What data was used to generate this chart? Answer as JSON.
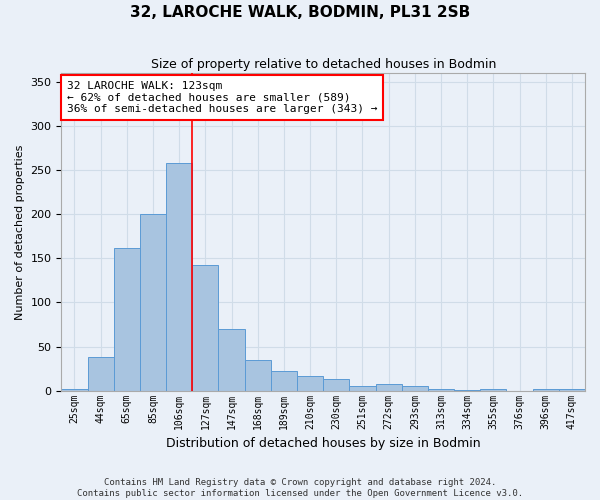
{
  "title": "32, LAROCHE WALK, BODMIN, PL31 2SB",
  "subtitle": "Size of property relative to detached houses in Bodmin",
  "xlabel": "Distribution of detached houses by size in Bodmin",
  "ylabel": "Number of detached properties",
  "categories": [
    "25sqm",
    "44sqm",
    "65sqm",
    "85sqm",
    "106sqm",
    "127sqm",
    "147sqm",
    "168sqm",
    "189sqm",
    "210sqm",
    "230sqm",
    "251sqm",
    "272sqm",
    "293sqm",
    "313sqm",
    "334sqm",
    "355sqm",
    "376sqm",
    "396sqm",
    "417sqm"
  ],
  "values": [
    2,
    38,
    162,
    200,
    258,
    142,
    70,
    35,
    22,
    17,
    13,
    5,
    7,
    5,
    2,
    1,
    2,
    0,
    2,
    2
  ],
  "bar_color": "#a8c4e0",
  "bar_edge_color": "#5b9bd5",
  "grid_color": "#d0dce8",
  "background_color": "#eaf0f8",
  "red_line_x": 4.5,
  "annotation_text": "32 LAROCHE WALK: 123sqm\n← 62% of detached houses are smaller (589)\n36% of semi-detached houses are larger (343) →",
  "annotation_box_color": "white",
  "annotation_box_edge_color": "red",
  "footnote1": "Contains HM Land Registry data © Crown copyright and database right 2024.",
  "footnote2": "Contains public sector information licensed under the Open Government Licence v3.0.",
  "ylim": [
    0,
    360
  ],
  "yticks": [
    0,
    50,
    100,
    150,
    200,
    250,
    300,
    350
  ]
}
